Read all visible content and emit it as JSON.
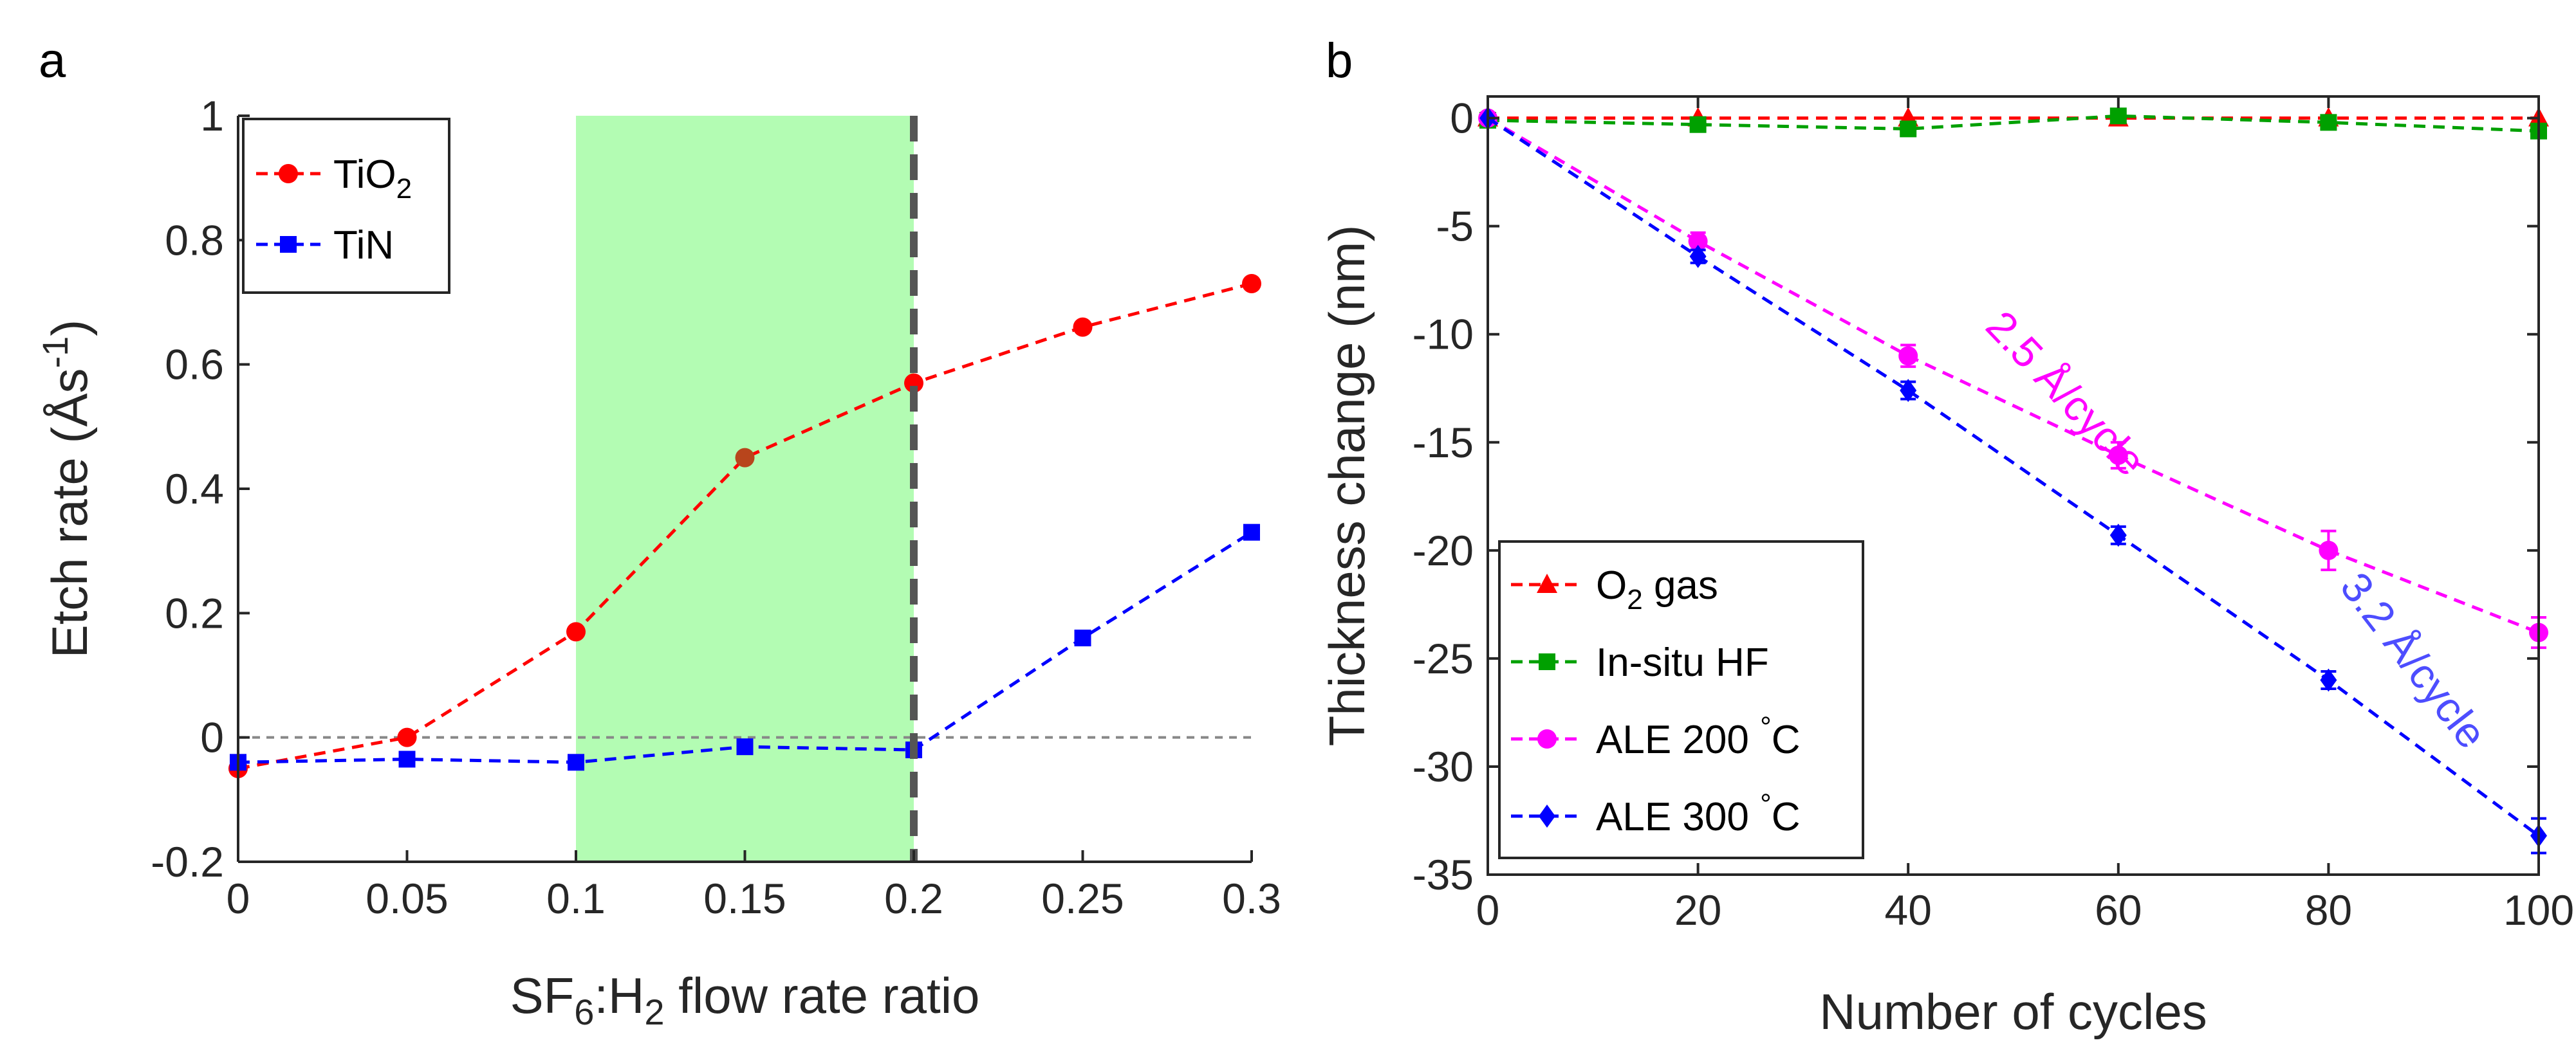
{
  "chart_data": [
    {
      "panel_label": "a",
      "type": "line",
      "xlabel": {
        "main": "SF",
        "sub": "6",
        "rest": ":H",
        "sub2": "2",
        "tail": " flow rate ratio"
      },
      "ylabel": {
        "main": "Etch rate (Å",
        "rest": "s",
        "sup": "-1",
        "tail": ")"
      },
      "xlim": [
        0,
        0.3
      ],
      "ylim": [
        -0.2,
        1
      ],
      "xticks": [
        "0",
        "0.05",
        "0.1",
        "0.15",
        "0.2",
        "0.25",
        "0.3"
      ],
      "yticks": [
        "-0.2",
        "0",
        "0.2",
        "0.4",
        "0.6",
        "0.8",
        "1"
      ],
      "highlight_region": {
        "x0": 0.1,
        "x1": 0.2,
        "color": "#b3fcb3"
      },
      "vertical_line": {
        "x": 0.2,
        "color": "#555555"
      },
      "reference_line": {
        "y": 0,
        "color": "#888888"
      },
      "x": [
        0,
        0.05,
        0.1,
        0.15,
        0.2,
        0.25,
        0.3
      ],
      "series": [
        {
          "name": "TiO",
          "name_sub": "2",
          "color": "#ff0000",
          "inregion_color": "#b8451c",
          "marker": "circle",
          "values": [
            -0.05,
            0.0,
            0.17,
            0.45,
            0.57,
            0.66,
            0.73
          ]
        },
        {
          "name": "TiN",
          "name_sub": "",
          "color": "#0000ff",
          "marker": "square",
          "values": [
            -0.04,
            -0.035,
            -0.04,
            -0.015,
            -0.02,
            0.16,
            0.33
          ]
        }
      ],
      "legend_position": "top-left"
    },
    {
      "panel_label": "b",
      "type": "line",
      "xlabel": {
        "main": "Number of cycles"
      },
      "ylabel": {
        "main": "Thickness change (nm)"
      },
      "xlim": [
        0,
        100
      ],
      "ylim": [
        -35,
        1
      ],
      "xticks": [
        "0",
        "20",
        "40",
        "60",
        "80",
        "100"
      ],
      "yticks": [
        "0",
        "-5",
        "-10",
        "-15",
        "-20",
        "-25",
        "-30",
        "-35"
      ],
      "x": [
        0,
        20,
        40,
        60,
        80,
        100
      ],
      "series": [
        {
          "name": "O",
          "name_sub": "2",
          "name_tail": " gas",
          "color": "#ff0000",
          "marker": "triangle",
          "values": [
            0,
            0,
            0,
            0,
            0,
            0
          ]
        },
        {
          "name": "In-situ HF",
          "color": "#00a000",
          "marker": "square",
          "values": [
            -0.1,
            -0.3,
            -0.5,
            0.1,
            -0.2,
            -0.6
          ]
        },
        {
          "name": "ALE 200 ",
          "name_sup": "°",
          "name_tail": "C",
          "color": "#ff00ff",
          "marker": "circle",
          "values": [
            0,
            -5.7,
            -11.0,
            -15.6,
            -20.0,
            -23.8
          ],
          "errors": [
            0,
            0.4,
            0.5,
            0.6,
            0.9,
            0.7
          ]
        },
        {
          "name": "ALE 300 ",
          "name_sup": "°",
          "name_tail": "C",
          "color": "#0000ff",
          "marker": "diamond",
          "values": [
            0,
            -6.4,
            -12.6,
            -19.3,
            -26.0,
            -33.2
          ],
          "errors": [
            0,
            0.3,
            0.4,
            0.4,
            0.4,
            0.8
          ]
        }
      ],
      "annotations": [
        {
          "text": "2.5 Å/cycle",
          "color": "#ff00ff",
          "x": 54,
          "y": -13.2,
          "rotation_data": -5.1
        },
        {
          "text": "3.2 Å/cycle",
          "color": "#4d4dff",
          "x": 87,
          "y": -25.5,
          "rotation_data": -6.3
        }
      ],
      "legend_position": "bottom-left"
    }
  ]
}
